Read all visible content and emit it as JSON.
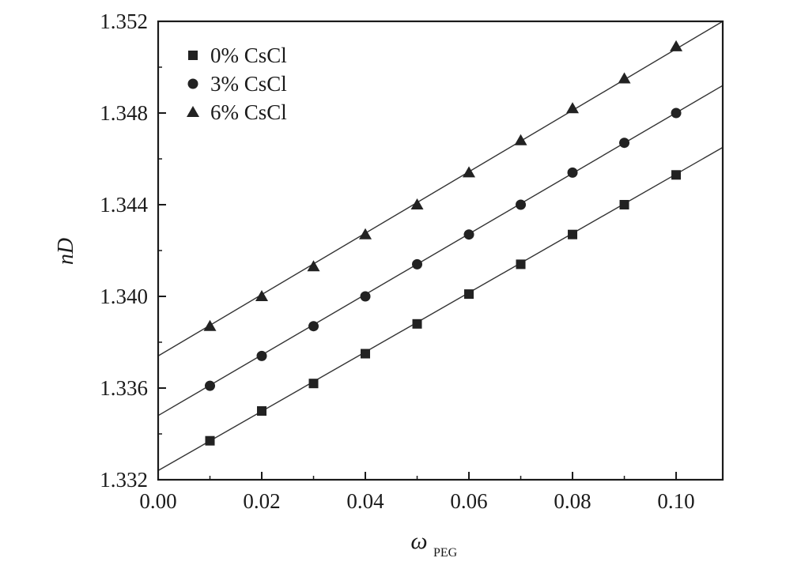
{
  "chart_data": {
    "type": "scatter",
    "xlabel": "ω",
    "xlabel_sub": "PEG",
    "ylabel": "nD",
    "xlim": [
      0.0,
      0.109
    ],
    "ylim": [
      1.332,
      1.352
    ],
    "xticks": [
      0.0,
      0.02,
      0.04,
      0.06,
      0.08,
      0.1
    ],
    "xtick_labels": [
      "0.00",
      "0.02",
      "0.04",
      "0.06",
      "0.08",
      "0.10"
    ],
    "yticks": [
      1.332,
      1.336,
      1.34,
      1.344,
      1.348,
      1.352
    ],
    "ytick_labels": [
      "1.332",
      "1.336",
      "1.340",
      "1.344",
      "1.348",
      "1.352"
    ],
    "grid": false,
    "legend_position": "top-left",
    "series": [
      {
        "name": "0% CsCl",
        "marker": "square",
        "x": [
          0.01,
          0.02,
          0.03,
          0.04,
          0.05,
          0.06,
          0.07,
          0.08,
          0.09,
          0.1
        ],
        "y": [
          1.3337,
          1.335,
          1.3362,
          1.3375,
          1.3388,
          1.3401,
          1.3414,
          1.3427,
          1.344,
          1.3453
        ],
        "fit": [
          [
            0.0,
            1.3324
          ],
          [
            0.109,
            1.3465
          ]
        ]
      },
      {
        "name": "3% CsCl",
        "marker": "circle",
        "x": [
          0.01,
          0.02,
          0.03,
          0.04,
          0.05,
          0.06,
          0.07,
          0.08,
          0.09,
          0.1
        ],
        "y": [
          1.3361,
          1.3374,
          1.3387,
          1.34,
          1.3414,
          1.3427,
          1.344,
          1.3454,
          1.3467,
          1.348
        ],
        "fit": [
          [
            0.0,
            1.3348
          ],
          [
            0.109,
            1.3492
          ]
        ]
      },
      {
        "name": "6% CsCl",
        "marker": "triangle",
        "x": [
          0.01,
          0.02,
          0.03,
          0.04,
          0.05,
          0.06,
          0.07,
          0.08,
          0.09,
          0.1
        ],
        "y": [
          1.3387,
          1.34,
          1.3413,
          1.3427,
          1.344,
          1.3454,
          1.3468,
          1.3482,
          1.3495,
          1.3509
        ],
        "fit": [
          [
            0.0,
            1.3374
          ],
          [
            0.109,
            1.352
          ]
        ]
      }
    ]
  }
}
